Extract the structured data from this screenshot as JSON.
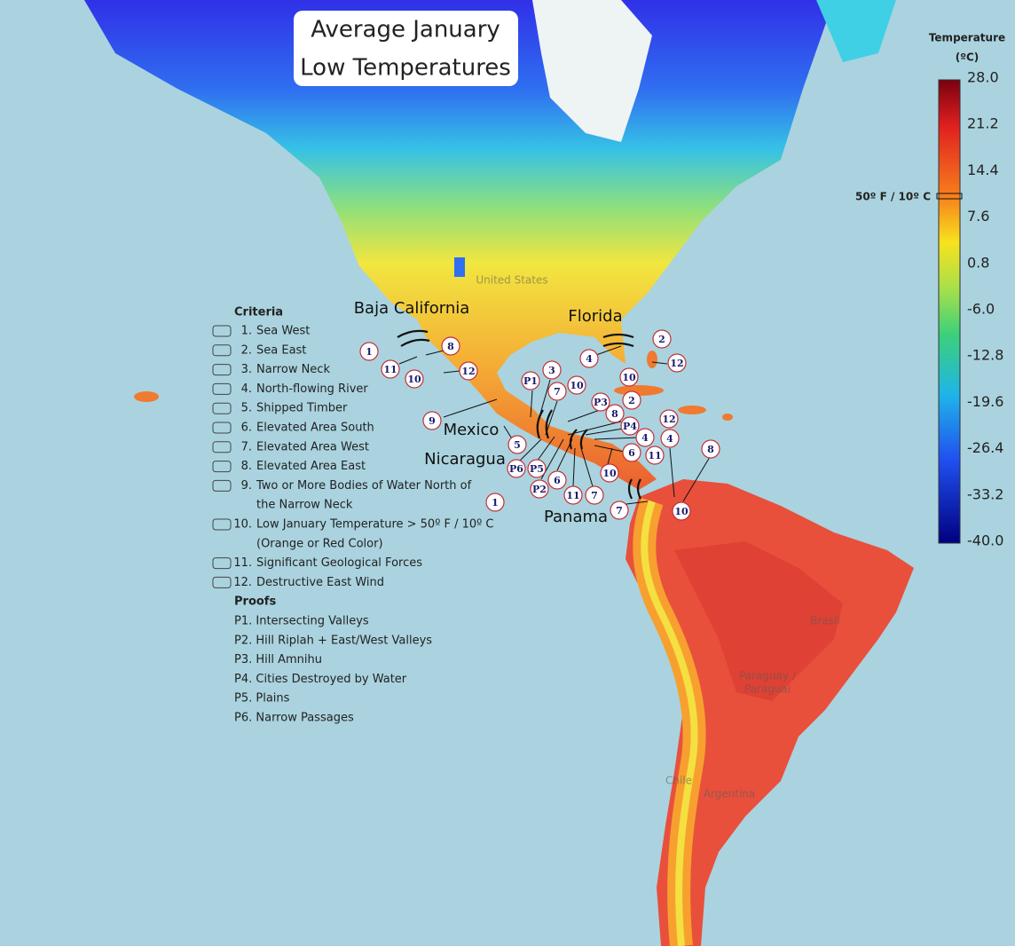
{
  "title": {
    "lines": [
      "Average January",
      "Low Temperatures"
    ]
  },
  "colorbar": {
    "title": "Temperature",
    "unit": "(ºC)",
    "ticks": [
      "28.0",
      "21.2",
      "14.4",
      "7.6",
      "0.8",
      "-6.0",
      "-12.8",
      "-19.6",
      "-26.4",
      "-33.2",
      "-40.0"
    ],
    "threshold_label": "50º F / 10º C"
  },
  "regions": [
    "Baja California",
    "Florida",
    "Mexico",
    "Nicaragua",
    "Panama"
  ],
  "basemap_labels": [
    "United States",
    "Brasil",
    "Paraguay /",
    "Paraguai",
    "Chile",
    "Argentina"
  ],
  "legend": {
    "criteria_title": "Criteria",
    "criteria": [
      {
        "number": "1.",
        "lines": [
          "Sea West"
        ]
      },
      {
        "number": "2.",
        "lines": [
          "Sea East"
        ]
      },
      {
        "number": "3.",
        "lines": [
          "Narrow Neck"
        ]
      },
      {
        "number": "4.",
        "lines": [
          "North-flowing River"
        ]
      },
      {
        "number": "5.",
        "lines": [
          "Shipped Timber"
        ]
      },
      {
        "number": "6.",
        "lines": [
          "Elevated Area South"
        ]
      },
      {
        "number": "7.",
        "lines": [
          "Elevated Area West"
        ]
      },
      {
        "number": "8.",
        "lines": [
          "Elevated Area East"
        ]
      },
      {
        "number": "9.",
        "lines": [
          "Two or More Bodies of Water North of",
          "the Narrow Neck"
        ]
      },
      {
        "number": "10.",
        "lines": [
          "Low January Temperature > 50º F / 10º C",
          "(Orange or Red Color)"
        ]
      },
      {
        "number": "11.",
        "lines": [
          "Significant Geological Forces"
        ]
      },
      {
        "number": "12.",
        "lines": [
          "Destructive East Wind"
        ]
      }
    ],
    "proofs_title": "Proofs",
    "proofs": [
      "P1. Intersecting Valleys",
      "P2. Hill Riplah + East/West Valleys",
      "P3. Hill Amnihu",
      "P4. Cities Destroyed by Water",
      "P5. Plains",
      "P6. Narrow Passages"
    ]
  },
  "markers": [
    "1",
    "8",
    "11",
    "10",
    "12",
    "2",
    "4",
    "12",
    "10",
    "3",
    "P1",
    "7",
    "10",
    "9",
    "P3",
    "2",
    "8",
    "12",
    "P4",
    "4",
    "4",
    "5",
    "6",
    "11",
    "8",
    "P6",
    "P5",
    "10",
    "6",
    "P2",
    "11",
    "7",
    "1",
    "7",
    "10"
  ]
}
